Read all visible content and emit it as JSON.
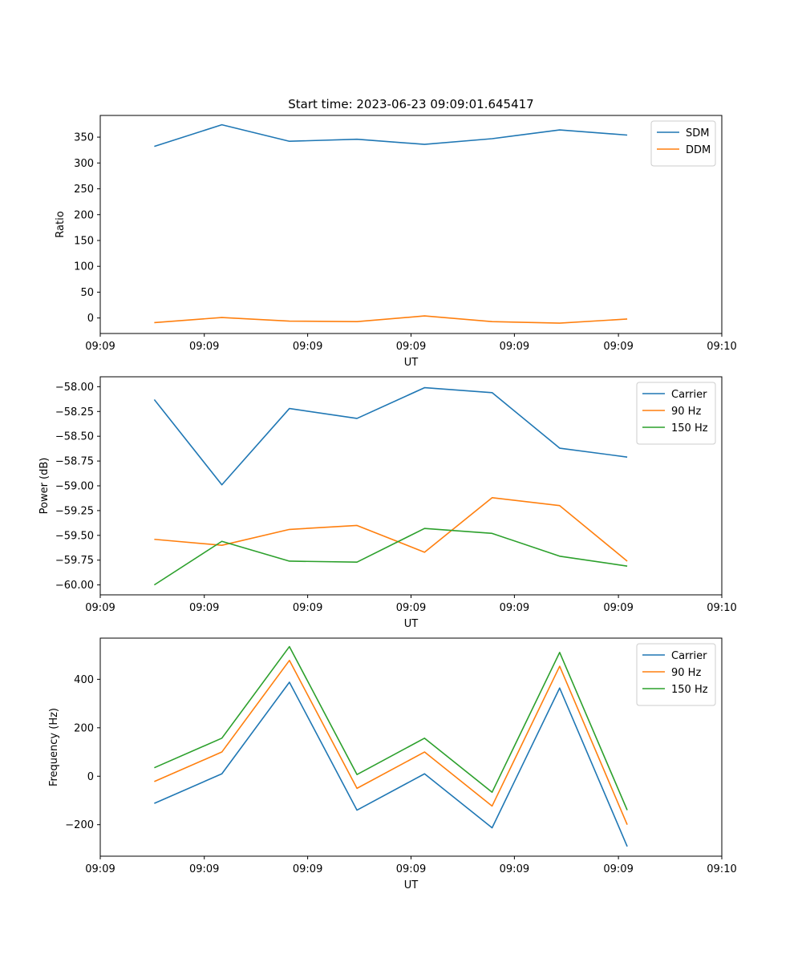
{
  "figure": {
    "title": "Start time: 2023-06-23 09:09:01.645417"
  },
  "chart_data": [
    {
      "type": "line",
      "title": "Start time: 2023-06-23 09:09:01.645417",
      "xlabel": "UT",
      "ylabel": "Ratio",
      "x": [
        1,
        2,
        3,
        4,
        5,
        6,
        7,
        8
      ],
      "xlim": [
        0.2,
        9.4
      ],
      "x_ticks": [
        0.2,
        1.74,
        3.27,
        4.8,
        6.33,
        7.87,
        9.4
      ],
      "x_tick_labels": [
        "09:09",
        "09:09",
        "09:09",
        "09:09",
        "09:09",
        "09:09",
        "09:10"
      ],
      "ylim": [
        -30,
        392
      ],
      "y_ticks": [
        0,
        50,
        100,
        150,
        200,
        250,
        300,
        350
      ],
      "y_tick_labels": [
        "0",
        "50",
        "100",
        "150",
        "200",
        "250",
        "300",
        "350"
      ],
      "legend": "top-right",
      "grid": false,
      "series": [
        {
          "name": "SDM",
          "color": "#1f77b4",
          "values": [
            332,
            374,
            342,
            346,
            336,
            347,
            364,
            354
          ]
        },
        {
          "name": "DDM",
          "color": "#ff7f0e",
          "values": [
            -9,
            1,
            -6,
            -7,
            4,
            -7,
            -10,
            -2
          ]
        }
      ]
    },
    {
      "type": "line",
      "xlabel": "UT",
      "ylabel": "Power (dB)",
      "x": [
        1,
        2,
        3,
        4,
        5,
        6,
        7,
        8
      ],
      "xlim": [
        0.2,
        9.4
      ],
      "x_ticks": [
        0.2,
        1.74,
        3.27,
        4.8,
        6.33,
        7.87,
        9.4
      ],
      "x_tick_labels": [
        "09:09",
        "09:09",
        "09:09",
        "09:09",
        "09:09",
        "09:09",
        "09:10"
      ],
      "ylim": [
        -60.1,
        -57.9
      ],
      "y_ticks": [
        -58.0,
        -58.25,
        -58.5,
        -58.75,
        -59.0,
        -59.25,
        -59.5,
        -59.75,
        -60.0
      ],
      "y_tick_labels": [
        "−58.00",
        "−58.25",
        "−58.50",
        "−58.75",
        "−59.00",
        "−59.25",
        "−59.50",
        "−59.75",
        "−60.00"
      ],
      "legend": "top-right",
      "grid": false,
      "series": [
        {
          "name": "Carrier",
          "color": "#1f77b4",
          "values": [
            -58.13,
            -58.99,
            -58.22,
            -58.32,
            -58.01,
            -58.06,
            -58.62,
            -58.71
          ]
        },
        {
          "name": "90 Hz",
          "color": "#ff7f0e",
          "values": [
            -59.54,
            -59.6,
            -59.44,
            -59.4,
            -59.67,
            -59.12,
            -59.2,
            -59.76
          ]
        },
        {
          "name": "150 Hz",
          "color": "#2ca02c",
          "values": [
            -60.0,
            -59.56,
            -59.76,
            -59.77,
            -59.43,
            -59.48,
            -59.71,
            -59.81
          ]
        }
      ]
    },
    {
      "type": "line",
      "xlabel": "UT",
      "ylabel": "Frequency (Hz)",
      "x": [
        1,
        2,
        3,
        4,
        5,
        6,
        7,
        8
      ],
      "xlim": [
        0.2,
        9.4
      ],
      "x_ticks": [
        0.2,
        1.74,
        3.27,
        4.8,
        6.33,
        7.87,
        9.4
      ],
      "x_tick_labels": [
        "09:09",
        "09:09",
        "09:09",
        "09:09",
        "09:09",
        "09:09",
        "09:10"
      ],
      "ylim": [
        -330,
        570
      ],
      "y_ticks": [
        -200,
        0,
        200,
        400
      ],
      "y_tick_labels": [
        "−200",
        "0",
        "200",
        "400"
      ],
      "legend": "top-right",
      "grid": false,
      "series": [
        {
          "name": "Carrier",
          "color": "#1f77b4",
          "values": [
            -112,
            10,
            388,
            -140,
            10,
            -213,
            364,
            -290
          ]
        },
        {
          "name": "90 Hz",
          "color": "#ff7f0e",
          "values": [
            -22,
            100,
            478,
            -50,
            100,
            -123,
            454,
            -200
          ]
        },
        {
          "name": "150 Hz",
          "color": "#2ca02c",
          "values": [
            35,
            157,
            535,
            7,
            157,
            -66,
            511,
            -140
          ]
        }
      ]
    }
  ]
}
